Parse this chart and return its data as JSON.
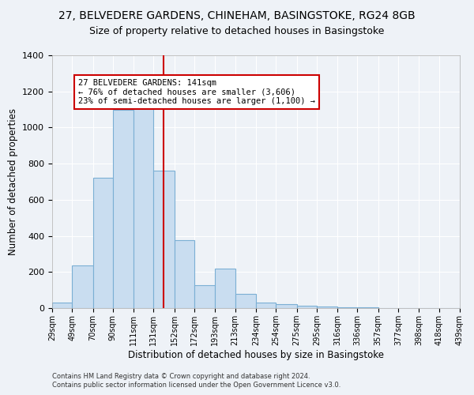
{
  "title1": "27, BELVEDERE GARDENS, CHINEHAM, BASINGSTOKE, RG24 8GB",
  "title2": "Size of property relative to detached houses in Basingstoke",
  "xlabel": "Distribution of detached houses by size in Basingstoke",
  "ylabel": "Number of detached properties",
  "footer1": "Contains HM Land Registry data © Crown copyright and database right 2024.",
  "footer2": "Contains public sector information licensed under the Open Government Licence v3.0.",
  "bin_edges": [
    29,
    49,
    70,
    90,
    111,
    131,
    152,
    172,
    193,
    213,
    234,
    254,
    275,
    295,
    316,
    336,
    357,
    377,
    398,
    418,
    439
  ],
  "bar_heights": [
    30,
    235,
    720,
    1100,
    1120,
    760,
    375,
    125,
    220,
    80,
    30,
    20,
    15,
    10,
    5,
    3,
    2,
    1,
    1,
    0
  ],
  "bar_color": "#c9ddf0",
  "bar_edge_color": "#7bafd4",
  "property_size": 141,
  "ylim": [
    0,
    1400
  ],
  "yticks": [
    0,
    200,
    400,
    600,
    800,
    1000,
    1200,
    1400
  ],
  "vline_color": "#cc0000",
  "annotation_text": "27 BELVEDERE GARDENS: 141sqm\n← 76% of detached houses are smaller (3,606)\n23% of semi-detached houses are larger (1,100) →",
  "annotation_box_color": "#ffffff",
  "annotation_box_edge": "#cc0000",
  "background_color": "#eef2f7",
  "grid_color": "#ffffff",
  "title1_fontsize": 10,
  "title2_fontsize": 9,
  "xlabel_fontsize": 8.5,
  "ylabel_fontsize": 8.5,
  "annot_fontsize": 7.5
}
